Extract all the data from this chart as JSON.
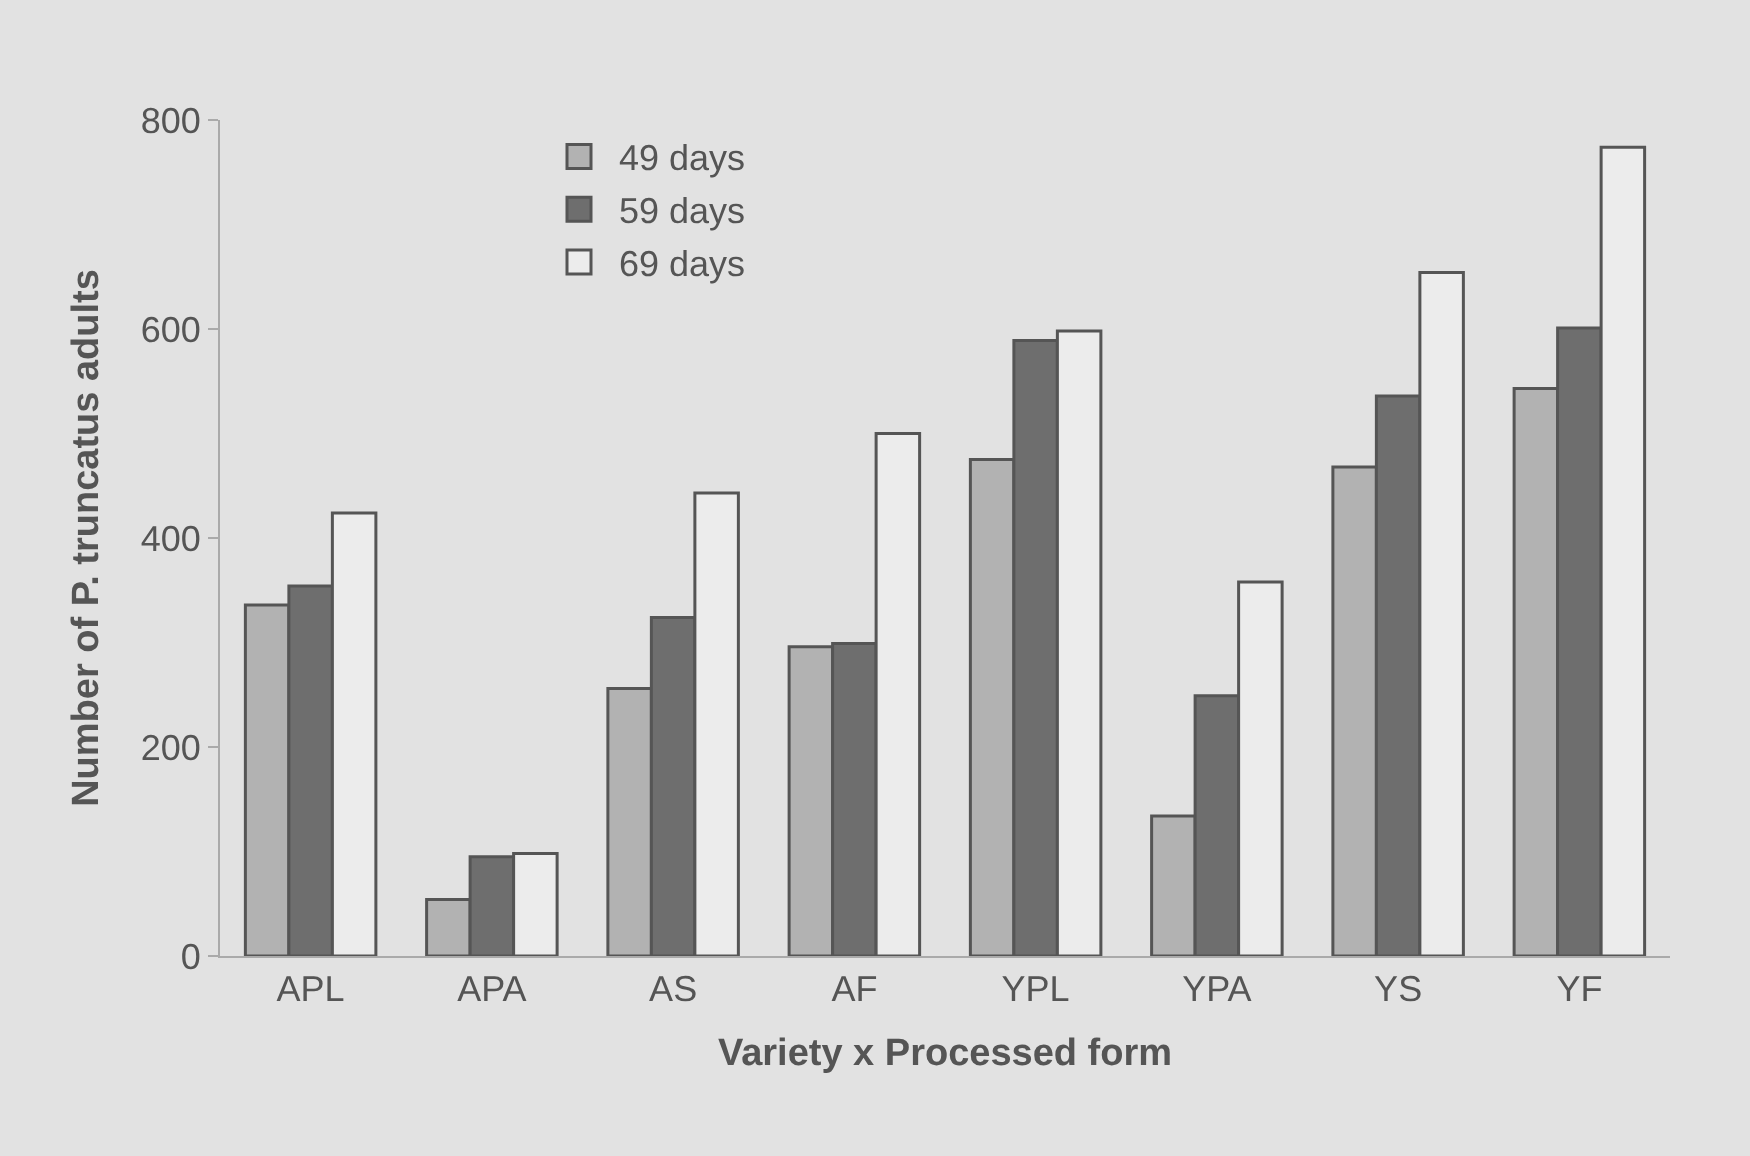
{
  "chart_data": {
    "type": "bar",
    "xlabel": "Variety x Processed form",
    "ylabel": "Number of P. truncatus adults",
    "categories": [
      "APL",
      "APA",
      "AS",
      "AF",
      "YPL",
      "YPA",
      "YS",
      "YF"
    ],
    "series": [
      {
        "name": "49 days",
        "color": "#b2b2b2",
        "values": [
          336,
          54,
          256,
          296,
          475,
          134,
          468,
          543
        ]
      },
      {
        "name": "59 days",
        "color": "#6e6e6e",
        "values": [
          354,
          95,
          324,
          299,
          589,
          249,
          536,
          601
        ]
      },
      {
        "name": "69 days",
        "color": "#ececec",
        "values": [
          424,
          98,
          443,
          500,
          598,
          358,
          654,
          774
        ]
      }
    ],
    "ylim": [
      0,
      800
    ],
    "yticks": [
      0,
      200,
      400,
      600,
      800
    ],
    "grid": false,
    "legend": "top left"
  }
}
